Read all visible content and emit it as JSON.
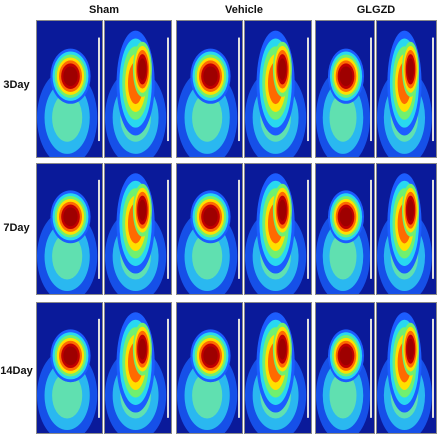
{
  "columns": [
    "Sham",
    "Vehicle",
    "GLGZD"
  ],
  "rows": [
    "3Day",
    "7Day",
    "14Day"
  ],
  "image_description": "PET-CT style heat-map scans of rat brains; each panel shows coronal (left) and sagittal (right) views with jet colormap.",
  "colors": {
    "background_blue": "#0a1a9a",
    "hot_red": "#9e0000",
    "warm_yellow": "#ffe000",
    "cyan": "#28d8f0"
  }
}
